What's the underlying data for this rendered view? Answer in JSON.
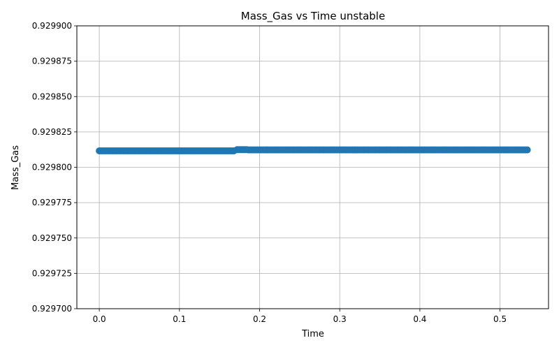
{
  "chart_data": {
    "type": "scatter",
    "title": "Mass_Gas vs Time unstable",
    "xlabel": "Time",
    "ylabel": "Mass_Gas",
    "xlim": [
      -0.028,
      0.5605
    ],
    "ylim": [
      0.9297,
      0.9299
    ],
    "x_ticks": [
      0.0,
      0.1,
      0.2,
      0.3,
      0.4,
      0.5
    ],
    "x_tick_labels": [
      "0.0",
      "0.1",
      "0.2",
      "0.3",
      "0.4",
      "0.5"
    ],
    "y_ticks": [
      0.9297,
      0.929725,
      0.92975,
      0.929775,
      0.9298,
      0.929825,
      0.92985,
      0.929875,
      0.9299
    ],
    "y_tick_labels": [
      "0.929700",
      "0.929725",
      "0.929750",
      "0.929775",
      "0.929800",
      "0.929825",
      "0.929850",
      "0.929875",
      "0.929900"
    ],
    "grid": true,
    "marker_color": "#1f77b4",
    "marker": "circle",
    "series": [
      {
        "segments": [
          {
            "x_start": 0.0,
            "x_end": 0.168,
            "y": 0.9298116
          },
          {
            "x_start": 0.172,
            "x_end": 0.183,
            "y": 0.9298125
          },
          {
            "x_start": 0.186,
            "x_end": 0.533,
            "y": 0.9298123
          }
        ],
        "point_spacing": 0.002
      }
    ]
  }
}
